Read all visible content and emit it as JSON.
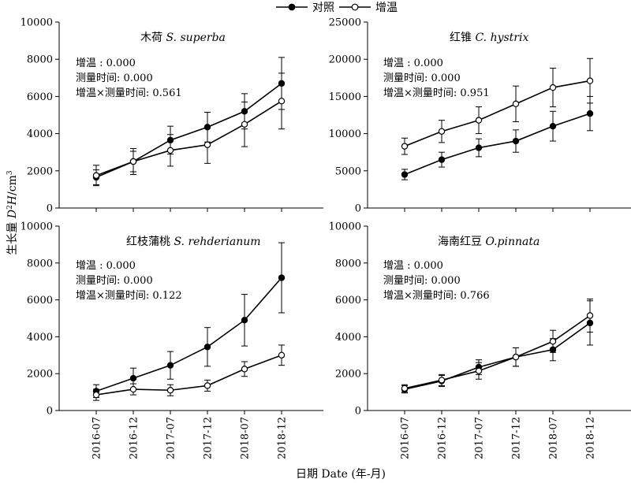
{
  "legend": [
    {
      "label": "对照",
      "marker": "filled"
    },
    {
      "label": "增温",
      "marker": "open"
    }
  ],
  "y_title": {
    "zh": "生长量 ",
    "var": "D",
    "sup": "2",
    "var2": "H",
    "unit": "/cm",
    "unit_sup": "3"
  },
  "x_title": "日期 Date (年-月)",
  "chart_data": [
    {
      "type": "line",
      "title_zh": "木荷",
      "title_sp": "S. superba",
      "categories": [
        "2016-07",
        "2016-12",
        "2017-07",
        "2017-12",
        "2018-07",
        "2018-12"
      ],
      "ylim": [
        0,
        10000
      ],
      "yticks": [
        0,
        2000,
        4000,
        6000,
        8000,
        10000
      ],
      "yticklabels": [
        "0",
        "2000",
        "4000",
        "6000",
        "8000",
        "10000"
      ],
      "annotations": [
        "增温 : 0.000",
        "测量时间: 0.000",
        "增温×测量时间: 0.561"
      ],
      "series": [
        {
          "name": "对照",
          "values": [
            1650,
            2500,
            3650,
            4350,
            5200,
            6700
          ],
          "errors": [
            400,
            550,
            750,
            800,
            950,
            1400
          ]
        },
        {
          "name": "增温",
          "values": [
            1750,
            2500,
            3100,
            3400,
            4500,
            5750
          ],
          "errors": [
            550,
            700,
            850,
            1000,
            1200,
            1500
          ]
        }
      ]
    },
    {
      "type": "line",
      "title_zh": "红锥",
      "title_sp": "C. hystrix",
      "categories": [
        "2016-07",
        "2016-12",
        "2017-07",
        "2017-12",
        "2018-07",
        "2018-12"
      ],
      "ylim": [
        0,
        25000
      ],
      "yticks": [
        0,
        5000,
        10000,
        15000,
        20000,
        25000
      ],
      "yticklabels": [
        "0",
        "5000",
        "10000",
        "15000",
        "20000",
        "25000"
      ],
      "annotations": [
        "增温 : 0.000",
        "测量时间: 0.000",
        "增温×测量时间: 0.951"
      ],
      "series": [
        {
          "name": "对照",
          "values": [
            4500,
            6500,
            8100,
            9000,
            11000,
            12700
          ],
          "errors": [
            700,
            1000,
            1200,
            1500,
            2000,
            2300
          ]
        },
        {
          "name": "增温",
          "values": [
            8300,
            10300,
            11800,
            14000,
            16200,
            17100
          ],
          "errors": [
            1100,
            1500,
            1800,
            2400,
            2600,
            3000
          ]
        }
      ]
    },
    {
      "type": "line",
      "title_zh": "红枝蒲桃",
      "title_sp": "S. rehderianum",
      "categories": [
        "2016-07",
        "2016-12",
        "2017-07",
        "2017-12",
        "2018-07",
        "2018-12"
      ],
      "ylim": [
        0,
        10000
      ],
      "yticks": [
        0,
        2000,
        4000,
        6000,
        8000,
        10000
      ],
      "yticklabels": [
        "0",
        "2000",
        "4000",
        "6000",
        "8000",
        "10000"
      ],
      "annotations": [
        "增温 : 0.000",
        "测量时间: 0.000",
        "增温×测量时间: 0.122"
      ],
      "series": [
        {
          "name": "对照",
          "values": [
            1050,
            1750,
            2450,
            3450,
            4900,
            7200
          ],
          "errors": [
            350,
            550,
            750,
            1050,
            1400,
            1900
          ]
        },
        {
          "name": "增温",
          "values": [
            850,
            1150,
            1100,
            1350,
            2250,
            3000
          ],
          "errors": [
            300,
            300,
            300,
            300,
            400,
            550
          ]
        }
      ]
    },
    {
      "type": "line",
      "title_zh": "海南红豆",
      "title_sp": "O.pinnata",
      "categories": [
        "2016-07",
        "2016-12",
        "2017-07",
        "2017-12",
        "2018-07",
        "2018-12"
      ],
      "ylim": [
        0,
        10000
      ],
      "yticks": [
        0,
        2000,
        4000,
        6000,
        8000,
        10000
      ],
      "yticklabels": [
        "0",
        "2000",
        "4000",
        "6000",
        "8000",
        "10000"
      ],
      "annotations": [
        "增温 : 0.000",
        "测量时间: 0.000",
        "增温×测量时间: 0.766"
      ],
      "series": [
        {
          "name": "对照",
          "values": [
            1150,
            1600,
            2350,
            2900,
            3300,
            4750
          ],
          "errors": [
            200,
            300,
            400,
            500,
            600,
            1200
          ]
        },
        {
          "name": "增温",
          "values": [
            1200,
            1650,
            2150,
            2900,
            3750,
            5150
          ],
          "errors": [
            200,
            300,
            450,
            500,
            600,
            900
          ]
        }
      ]
    }
  ]
}
